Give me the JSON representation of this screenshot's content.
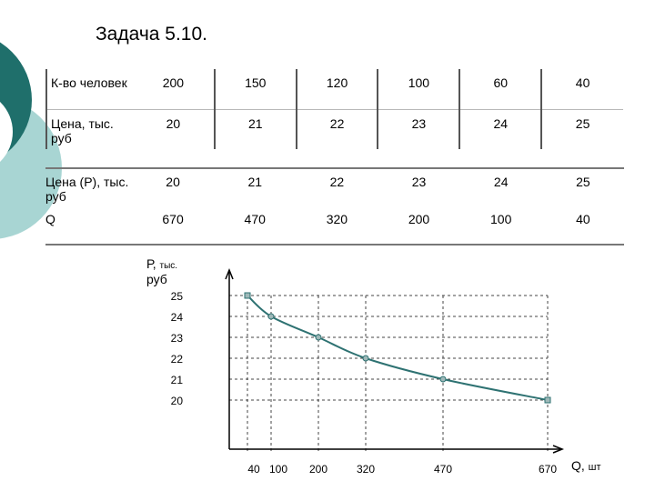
{
  "title": "Задача 5.10.",
  "table1": {
    "rows": [
      {
        "label": "К-во человек",
        "values": [
          "200",
          "150",
          "120",
          "100",
          "60",
          "40"
        ]
      },
      {
        "label": "Цена, тыс. руб",
        "values": [
          "20",
          "21",
          "22",
          "23",
          "24",
          "25"
        ]
      }
    ]
  },
  "table2": {
    "rows": [
      {
        "label": "Цена (Р), тыс. руб",
        "values": [
          "20",
          "21",
          "22",
          "23",
          "24",
          "25"
        ]
      },
      {
        "label": "Q",
        "values": [
          "670",
          "470",
          "320",
          "200",
          "100",
          "40"
        ]
      }
    ]
  },
  "chart_data": {
    "type": "line",
    "ylabel_main": "Р,",
    "ylabel_unit_small": "тыс.",
    "ylabel_unit": "руб",
    "xlabel_main": "Q,",
    "xlabel_unit": "шт",
    "x_ticks": [
      "40",
      "100",
      "200",
      "320",
      "470",
      "670"
    ],
    "y_ticks": [
      "25",
      "24",
      "23",
      "22",
      "21",
      "20"
    ],
    "points": [
      {
        "q": 40,
        "p": 25
      },
      {
        "q": 100,
        "p": 24
      },
      {
        "q": 200,
        "p": 23
      },
      {
        "q": 320,
        "p": 22
      },
      {
        "q": 470,
        "p": 21
      },
      {
        "q": 670,
        "p": 20
      }
    ],
    "colors": {
      "curve": "#2e7272",
      "marker_fill": "#9fb8b8",
      "grid": "#444444"
    },
    "grid": "dashed",
    "legend": "none"
  },
  "colors": {
    "teal_dark": "#1f6f6b",
    "teal_light": "#a8d5d3"
  }
}
